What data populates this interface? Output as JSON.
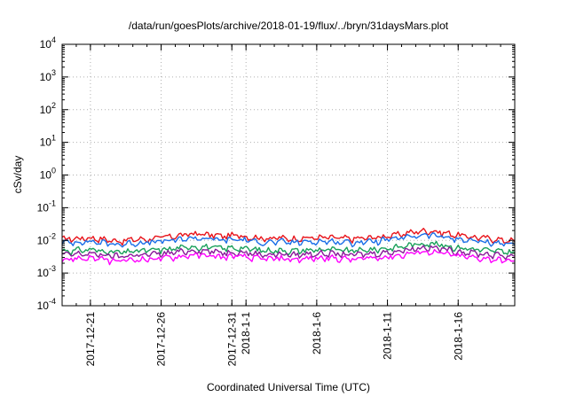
{
  "chart_data": {
    "type": "line",
    "title": "/data/run/goesPlots/archive/2018-01-19/flux/../bryn/31daysMars.plot",
    "xlabel": "Coordinated Universal Time (UTC)",
    "ylabel": "cSv/day",
    "y_scale": "log",
    "ylim": [
      0.0001,
      10000
    ],
    "xlim": [
      "2017-12-19",
      "2018-01-20"
    ],
    "grid": true,
    "legend": "none",
    "y_ticks": [
      {
        "value": 0.0001,
        "base": "10",
        "exp": "-4"
      },
      {
        "value": 0.001,
        "base": "10",
        "exp": "-3"
      },
      {
        "value": 0.01,
        "base": "10",
        "exp": "-2"
      },
      {
        "value": 0.1,
        "base": "10",
        "exp": "-1"
      },
      {
        "value": 1,
        "base": "10",
        "exp": "0"
      },
      {
        "value": 10,
        "base": "10",
        "exp": "1"
      },
      {
        "value": 100,
        "base": "10",
        "exp": "2"
      },
      {
        "value": 1000,
        "base": "10",
        "exp": "3"
      },
      {
        "value": 10000,
        "base": "10",
        "exp": "4"
      }
    ],
    "x_ticks": [
      {
        "date": "2017-12-21",
        "label": "2017-12-21"
      },
      {
        "date": "2017-12-26",
        "label": "2017-12-26"
      },
      {
        "date": "2017-12-31",
        "label": "2017-12-31"
      },
      {
        "date": "2018-01-01",
        "label": "2018-1-1"
      },
      {
        "date": "2018-01-06",
        "label": "2018-1-6"
      },
      {
        "date": "2018-01-11",
        "label": "2018-1-11"
      },
      {
        "date": "2018-01-16",
        "label": "2018-1-16"
      }
    ],
    "series": [
      {
        "color": "#e8141b",
        "values": [
          0.011,
          0.0115,
          0.012,
          0.0105,
          0.0095,
          0.0108,
          0.011,
          0.0125,
          0.014,
          0.016,
          0.015,
          0.0135,
          0.0145,
          0.0125,
          0.0115,
          0.0118,
          0.0112,
          0.012,
          0.0122,
          0.0118,
          0.0112,
          0.012,
          0.013,
          0.015,
          0.018,
          0.02,
          0.0175,
          0.0148,
          0.0128,
          0.0118,
          0.0105,
          0.0095
        ]
      },
      {
        "color": "#1a6ee8",
        "values": [
          0.0085,
          0.009,
          0.0092,
          0.0082,
          0.0075,
          0.0084,
          0.0086,
          0.0095,
          0.0105,
          0.012,
          0.0112,
          0.0102,
          0.0108,
          0.0095,
          0.0088,
          0.009,
          0.0086,
          0.0092,
          0.0094,
          0.009,
          0.0086,
          0.0092,
          0.01,
          0.0112,
          0.0135,
          0.015,
          0.013,
          0.011,
          0.0098,
          0.009,
          0.0082,
          0.0075
        ]
      },
      {
        "color": "#1aa05a",
        "values": [
          0.0048,
          0.005,
          0.0052,
          0.0046,
          0.0042,
          0.0047,
          0.0049,
          0.0053,
          0.0058,
          0.0066,
          0.0062,
          0.0057,
          0.006,
          0.0053,
          0.0049,
          0.005,
          0.0048,
          0.0051,
          0.0052,
          0.005,
          0.0048,
          0.0051,
          0.0056,
          0.0062,
          0.0074,
          0.0082,
          0.0072,
          0.0061,
          0.0055,
          0.005,
          0.0046,
          0.0043
        ]
      },
      {
        "color": "#8a1a9a",
        "values": [
          0.0036,
          0.0038,
          0.0039,
          0.0035,
          0.0032,
          0.0036,
          0.0037,
          0.004,
          0.0044,
          0.005,
          0.0047,
          0.0043,
          0.0045,
          0.004,
          0.0037,
          0.0038,
          0.0036,
          0.0039,
          0.004,
          0.0038,
          0.0036,
          0.0039,
          0.0042,
          0.0047,
          0.0056,
          0.0062,
          0.0055,
          0.0047,
          0.0042,
          0.0038,
          0.0035,
          0.0033
        ]
      },
      {
        "color": "#ff00ff",
        "values": [
          0.0026,
          0.0028,
          0.0029,
          0.0025,
          0.0023,
          0.0026,
          0.0027,
          0.0029,
          0.0032,
          0.0036,
          0.0034,
          0.0031,
          0.0033,
          0.0029,
          0.0027,
          0.0028,
          0.0026,
          0.0028,
          0.0029,
          0.0028,
          0.0026,
          0.0028,
          0.0031,
          0.0034,
          0.0041,
          0.0046,
          0.004,
          0.0034,
          0.003,
          0.0028,
          0.0025,
          0.0023
        ]
      }
    ]
  }
}
